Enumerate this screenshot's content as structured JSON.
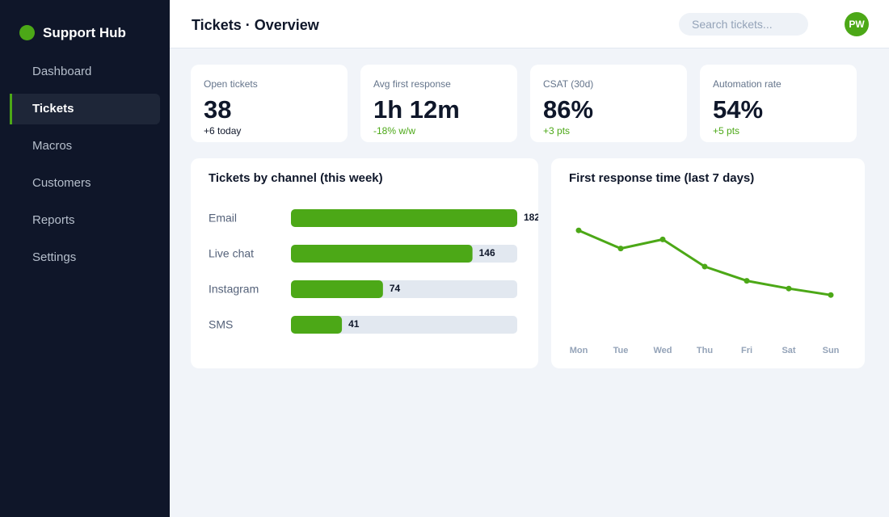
{
  "sidebar": {
    "brand": "Support Hub",
    "nav": [
      "Dashboard",
      "Tickets",
      "Macros",
      "Customers",
      "Reports",
      "Settings"
    ],
    "active": 1
  },
  "header": {
    "title": "Tickets · Overview",
    "search_placeholder": "Search tickets...",
    "avatar": "PW"
  },
  "kpis": [
    {
      "label": "Open tickets",
      "value": "38",
      "delta": "+6 today",
      "delta_color": "#0f172a"
    },
    {
      "label": "Avg first response",
      "value": "1h 12m",
      "delta": "-18% w/w",
      "delta_color": "#4ca817"
    },
    {
      "label": "CSAT (30d)",
      "value": "86%",
      "delta": "+3 pts",
      "delta_color": "#4ca817"
    },
    {
      "label": "Automation rate",
      "value": "54%",
      "delta": "+5 pts",
      "delta_color": "#4ca817"
    }
  ],
  "chart_data": [
    {
      "type": "bar",
      "title": "Tickets by channel (this week)",
      "categories": [
        "Email",
        "Live chat",
        "Instagram",
        "SMS"
      ],
      "values": [
        182,
        146,
        74,
        41
      ],
      "xlim": [
        0,
        182
      ],
      "color": "#4ca817",
      "track_color": "#e2e8f0"
    },
    {
      "type": "line",
      "title": "First response time (last 7 days)",
      "categories": [
        "Mon",
        "Tue",
        "Wed",
        "Thu",
        "Fri",
        "Sat",
        "Sun"
      ],
      "values": [
        78,
        64,
        71,
        50,
        39,
        33,
        28
      ],
      "ylim": [
        0,
        100
      ],
      "color": "#4ca817"
    }
  ]
}
